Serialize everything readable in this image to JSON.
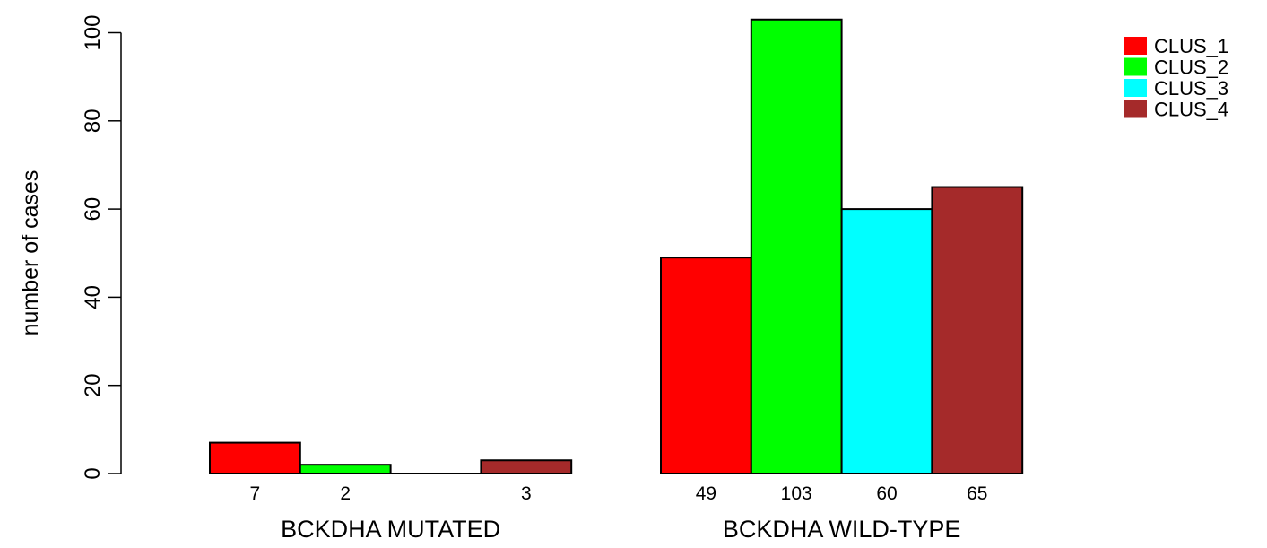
{
  "chart_data": {
    "type": "bar",
    "ylabel": "number of cases",
    "ylim": [
      0,
      100
    ],
    "yticks": [
      0,
      20,
      40,
      60,
      80,
      100
    ],
    "grid": false,
    "legend_position": "top-right",
    "categories": [
      "BCKDHA MUTATED",
      "BCKDHA WILD-TYPE"
    ],
    "series": [
      {
        "name": "CLUS_1",
        "color": "#ff0000",
        "values": [
          7,
          49
        ]
      },
      {
        "name": "CLUS_2",
        "color": "#00ff00",
        "values": [
          2,
          103
        ]
      },
      {
        "name": "CLUS_3",
        "color": "#00ffff",
        "values": [
          0,
          60
        ]
      },
      {
        "name": "CLUS_4",
        "color": "#a52a2a",
        "values": [
          3,
          65
        ]
      }
    ],
    "value_labels": [
      [
        "7",
        "2",
        "",
        "3"
      ],
      [
        "49",
        "103",
        "60",
        "65"
      ]
    ]
  }
}
